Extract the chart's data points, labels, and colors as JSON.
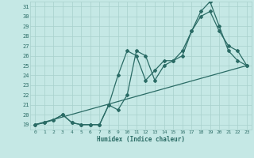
{
  "background_color": "#c5e8e5",
  "grid_color": "#a8d0cc",
  "line_color": "#2a6b65",
  "xlabel": "Humidex (Indice chaleur)",
  "xlim": [
    -0.5,
    23.5
  ],
  "ylim": [
    18.5,
    31.5
  ],
  "xticks": [
    0,
    1,
    2,
    3,
    4,
    5,
    6,
    7,
    8,
    9,
    10,
    11,
    12,
    13,
    14,
    15,
    16,
    17,
    18,
    19,
    20,
    21,
    22,
    23
  ],
  "yticks": [
    19,
    20,
    21,
    22,
    23,
    24,
    25,
    26,
    27,
    28,
    29,
    30,
    31
  ],
  "series1_x": [
    0,
    1,
    2,
    3,
    4,
    5,
    6,
    7,
    8,
    9,
    10,
    11,
    12,
    13,
    14,
    15,
    16,
    17,
    18,
    19,
    20,
    21,
    22,
    23
  ],
  "series1_y": [
    19,
    19.2,
    19.5,
    20.0,
    19.2,
    19.0,
    19.0,
    19.0,
    21.0,
    20.5,
    22.0,
    26.5,
    26.0,
    23.5,
    25.0,
    25.5,
    26.0,
    28.5,
    30.0,
    30.5,
    28.5,
    27.0,
    26.5,
    25.0
  ],
  "series2_x": [
    0,
    1,
    2,
    3,
    4,
    5,
    6,
    7,
    8,
    9,
    10,
    11,
    12,
    13,
    14,
    15,
    16,
    17,
    18,
    19,
    20,
    21,
    22,
    23
  ],
  "series2_y": [
    19,
    19.2,
    19.5,
    20.0,
    19.2,
    19.0,
    19.0,
    19.0,
    21.0,
    24.0,
    26.5,
    26.0,
    23.5,
    24.5,
    25.5,
    25.5,
    26.5,
    28.5,
    30.5,
    31.5,
    29.0,
    26.5,
    25.5,
    25.0
  ],
  "series3_x": [
    0,
    23
  ],
  "series3_y": [
    19.0,
    25.0
  ],
  "marker_size": 2.0,
  "line_width": 0.9
}
